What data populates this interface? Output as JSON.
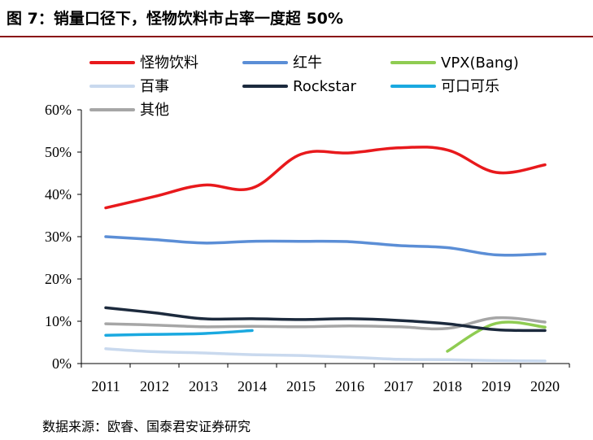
{
  "header": {
    "title": "图 7：销量口径下，怪物饮料市占率一度超 50%"
  },
  "footer": {
    "source": "数据来源：欧睿、国泰君安证券研究"
  },
  "chart_data": {
    "type": "line",
    "title": "图 7：销量口径下，怪物饮料市占率一度超 50%",
    "xlabel": "",
    "ylabel": "",
    "categories": [
      "2011",
      "2012",
      "2013",
      "2014",
      "2015",
      "2016",
      "2017",
      "2018",
      "2019",
      "2020"
    ],
    "ylim": [
      0,
      60
    ],
    "yticks": [
      "0%",
      "10%",
      "20%",
      "30%",
      "40%",
      "50%",
      "60%"
    ],
    "grid": false,
    "legend_position": "top",
    "series": [
      {
        "name": "怪物饮料",
        "color": "#e8191c",
        "values": [
          36.8,
          39.5,
          42.2,
          41.5,
          49.5,
          49.8,
          51.0,
          50.5,
          45.2,
          47.0
        ]
      },
      {
        "name": "红牛",
        "color": "#5b8ed6",
        "values": [
          30.0,
          29.3,
          28.5,
          28.9,
          28.9,
          28.8,
          27.9,
          27.4,
          25.7,
          25.9
        ]
      },
      {
        "name": "VPX(Bang)",
        "color": "#8fcc52",
        "values": [
          null,
          null,
          null,
          null,
          null,
          null,
          null,
          2.9,
          9.5,
          8.6
        ]
      },
      {
        "name": "百事",
        "color": "#c9d9ee",
        "values": [
          3.5,
          2.8,
          2.5,
          2.1,
          1.9,
          1.5,
          1.0,
          0.9,
          0.7,
          0.6
        ]
      },
      {
        "name": "Rockstar",
        "color": "#1c2a3d",
        "values": [
          13.2,
          12.0,
          10.6,
          10.6,
          10.4,
          10.6,
          10.2,
          9.4,
          8.0,
          7.8
        ]
      },
      {
        "name": "可口可乐",
        "color": "#1aa9e0",
        "values": [
          6.7,
          6.9,
          7.1,
          7.8,
          null,
          null,
          null,
          null,
          null,
          null
        ]
      },
      {
        "name": "其他",
        "color": "#a6a6a6",
        "values": [
          9.4,
          9.1,
          8.7,
          8.8,
          8.7,
          8.9,
          8.7,
          8.3,
          10.8,
          9.8
        ]
      }
    ]
  }
}
